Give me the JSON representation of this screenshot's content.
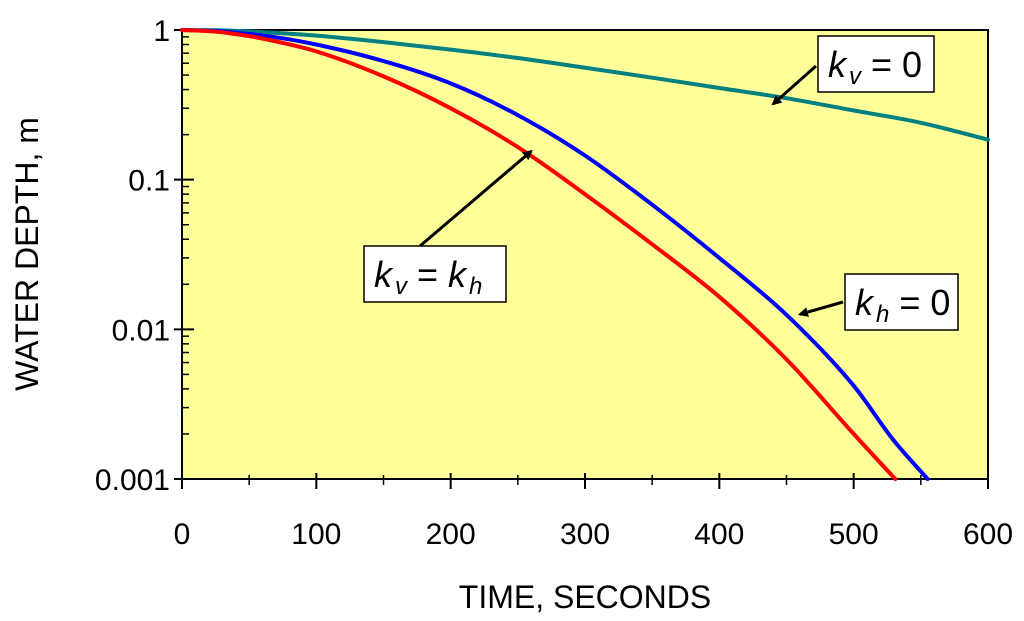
{
  "chart_data": {
    "type": "line",
    "title": "",
    "xlabel": "TIME, SECONDS",
    "ylabel": "WATER DEPTH, m",
    "xlim": [
      0,
      600
    ],
    "ylim": [
      0.001,
      1
    ],
    "yscale": "log",
    "grid": false,
    "background_color": "#FFFF99",
    "x_ticks": [
      0,
      100,
      200,
      300,
      400,
      500,
      600
    ],
    "x_tick_labels": [
      "0",
      "100",
      "200",
      "300",
      "400",
      "500",
      "600"
    ],
    "y_ticks": [
      0.001,
      0.01,
      0.1,
      1
    ],
    "y_tick_labels": [
      "0.001",
      "0.01",
      "0.1",
      "1"
    ],
    "series": [
      {
        "name": "kv = 0",
        "color": "#008080",
        "x": [
          0,
          25,
          50,
          75,
          100,
          150,
          200,
          250,
          300,
          350,
          400,
          450,
          500,
          550,
          600
        ],
        "y": [
          1.0,
          0.995,
          0.978,
          0.95,
          0.918,
          0.83,
          0.74,
          0.65,
          0.56,
          0.48,
          0.41,
          0.35,
          0.29,
          0.24,
          0.185
        ]
      },
      {
        "name": "kh = 0",
        "color": "#0000FF",
        "x": [
          0,
          25,
          50,
          75,
          100,
          150,
          200,
          250,
          300,
          350,
          400,
          450,
          500,
          530,
          555
        ],
        "y": [
          1.0,
          0.985,
          0.94,
          0.88,
          0.8,
          0.62,
          0.44,
          0.27,
          0.145,
          0.068,
          0.03,
          0.0125,
          0.0042,
          0.0018,
          0.001
        ]
      },
      {
        "name": "kv = kh",
        "color": "#FF0000",
        "x": [
          0,
          25,
          50,
          75,
          100,
          150,
          200,
          250,
          300,
          350,
          400,
          450,
          500,
          531
        ],
        "y": [
          1.0,
          0.975,
          0.91,
          0.82,
          0.72,
          0.49,
          0.3,
          0.165,
          0.08,
          0.037,
          0.0165,
          0.0063,
          0.002,
          0.001
        ]
      }
    ],
    "annotations": [
      {
        "name": "kv = 0",
        "k": "k",
        "sub": "v",
        "rhs": "= 0",
        "arrow_to_x": 440,
        "arrow_to_y": 0.32
      },
      {
        "name": "kh = 0",
        "k": "k",
        "sub": "h",
        "rhs": "= 0",
        "arrow_to_x": 460,
        "arrow_to_y": 0.0126
      },
      {
        "name": "kv = kh",
        "k": "k",
        "sub": "v",
        "rhs": "=",
        "k2": "k",
        "sub2": "h",
        "arrow_to_x": 260,
        "arrow_to_y": 0.155
      }
    ]
  }
}
